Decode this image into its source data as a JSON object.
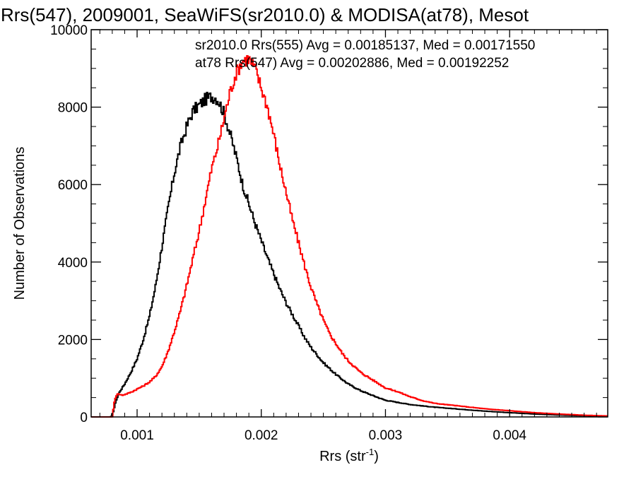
{
  "chart_data": {
    "type": "line",
    "title": "Rrs(547), 2009001, SeaWiFS(sr2010.0) & MODISA(at78), Mesot",
    "xlabel": "Rrs (str",
    "xlabel_sup": "-1",
    "xlabel_tail": ")",
    "ylabel": "Number of Observations",
    "xlim": [
      0.00063,
      0.00479
    ],
    "ylim": [
      0,
      10000
    ],
    "x_ticks": [
      0.001,
      0.002,
      0.003,
      0.004
    ],
    "x_tick_labels": [
      "0.001",
      "0.002",
      "0.003",
      "0.004"
    ],
    "y_ticks": [
      0,
      2000,
      4000,
      6000,
      8000,
      10000
    ],
    "y_tick_labels": [
      "0",
      "2000",
      "4000",
      "6000",
      "8000",
      "10000"
    ],
    "grid": false,
    "legend_position": "top-right",
    "series": [
      {
        "name": "sr2010.0 Rrs(555) Avg = 0.00185137, Med = 0.00171550",
        "color": "#000000",
        "points": [
          [
            0.00063,
            0
          ],
          [
            0.00079,
            0
          ],
          [
            0.00081,
            150
          ],
          [
            0.00083,
            420
          ],
          [
            0.00086,
            650
          ],
          [
            0.0009,
            850
          ],
          [
            0.00095,
            1150
          ],
          [
            0.001,
            1500
          ],
          [
            0.00105,
            2000
          ],
          [
            0.0011,
            2600
          ],
          [
            0.00115,
            3400
          ],
          [
            0.0012,
            4400
          ],
          [
            0.00125,
            5400
          ],
          [
            0.0013,
            6300
          ],
          [
            0.00135,
            7000
          ],
          [
            0.0014,
            7500
          ],
          [
            0.00145,
            7900
          ],
          [
            0.0015,
            8050
          ],
          [
            0.00155,
            8200
          ],
          [
            0.0016,
            8280
          ],
          [
            0.00163,
            8250
          ],
          [
            0.00165,
            8200
          ],
          [
            0.0017,
            7850
          ],
          [
            0.00175,
            7300
          ],
          [
            0.0018,
            6700
          ],
          [
            0.00185,
            6000
          ],
          [
            0.0019,
            5500
          ],
          [
            0.00195,
            5000
          ],
          [
            0.002,
            4550
          ],
          [
            0.00205,
            4100
          ],
          [
            0.0021,
            3700
          ],
          [
            0.00215,
            3300
          ],
          [
            0.0022,
            2950
          ],
          [
            0.00225,
            2650
          ],
          [
            0.0023,
            2350
          ],
          [
            0.00235,
            2050
          ],
          [
            0.0024,
            1800
          ],
          [
            0.00245,
            1600
          ],
          [
            0.0025,
            1400
          ],
          [
            0.0026,
            1100
          ],
          [
            0.0027,
            850
          ],
          [
            0.0028,
            680
          ],
          [
            0.0029,
            550
          ],
          [
            0.003,
            430
          ],
          [
            0.0032,
            320
          ],
          [
            0.0034,
            250
          ],
          [
            0.0036,
            200
          ],
          [
            0.0038,
            150
          ],
          [
            0.004,
            110
          ],
          [
            0.0042,
            75
          ],
          [
            0.0044,
            50
          ],
          [
            0.0046,
            30
          ],
          [
            0.00479,
            20
          ]
        ]
      },
      {
        "name": "at78 Rrs(547) Avg = 0.00202886, Med = 0.00192252",
        "color": "#ff0000",
        "points": [
          [
            0.00063,
            0
          ],
          [
            0.0008,
            0
          ],
          [
            0.00082,
            450
          ],
          [
            0.00084,
            600
          ],
          [
            0.00088,
            560
          ],
          [
            0.00092,
            600
          ],
          [
            0.00096,
            650
          ],
          [
            0.001,
            720
          ],
          [
            0.00105,
            800
          ],
          [
            0.0011,
            900
          ],
          [
            0.00115,
            1050
          ],
          [
            0.0012,
            1300
          ],
          [
            0.00125,
            1700
          ],
          [
            0.0013,
            2200
          ],
          [
            0.00135,
            2750
          ],
          [
            0.0014,
            3400
          ],
          [
            0.00145,
            4100
          ],
          [
            0.0015,
            4800
          ],
          [
            0.00155,
            5600
          ],
          [
            0.0016,
            6400
          ],
          [
            0.00165,
            7000
          ],
          [
            0.0017,
            7700
          ],
          [
            0.00175,
            8400
          ],
          [
            0.0018,
            8900
          ],
          [
            0.00185,
            9200
          ],
          [
            0.0019,
            9250
          ],
          [
            0.00195,
            9000
          ],
          [
            0.002,
            8500
          ],
          [
            0.00205,
            8000
          ],
          [
            0.0021,
            7300
          ],
          [
            0.00215,
            6500
          ],
          [
            0.0022,
            5800
          ],
          [
            0.00225,
            5100
          ],
          [
            0.0023,
            4500
          ],
          [
            0.00235,
            3900
          ],
          [
            0.0024,
            3350
          ],
          [
            0.00245,
            2900
          ],
          [
            0.0025,
            2500
          ],
          [
            0.00255,
            2150
          ],
          [
            0.0026,
            1900
          ],
          [
            0.00265,
            1650
          ],
          [
            0.0027,
            1450
          ],
          [
            0.0028,
            1150
          ],
          [
            0.0029,
            950
          ],
          [
            0.003,
            750
          ],
          [
            0.0031,
            650
          ],
          [
            0.0032,
            520
          ],
          [
            0.0033,
            420
          ],
          [
            0.0034,
            350
          ],
          [
            0.0036,
            280
          ],
          [
            0.0038,
            210
          ],
          [
            0.004,
            160
          ],
          [
            0.0042,
            110
          ],
          [
            0.0044,
            75
          ],
          [
            0.0046,
            45
          ],
          [
            0.00479,
            25
          ]
        ]
      }
    ]
  }
}
